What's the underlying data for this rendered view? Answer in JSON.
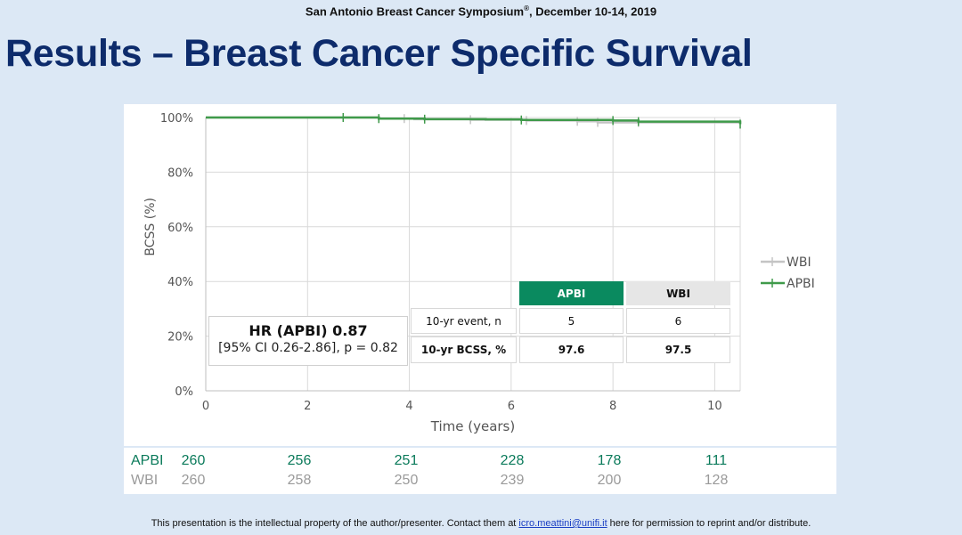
{
  "header": {
    "conference": "San Antonio Breast Cancer Symposium",
    "reg": "®",
    "dates": ", December 10-14, 2019"
  },
  "slide_title": "Results – Breast Cancer Specific Survival",
  "hr_box": {
    "title": "HR (APBI) 0.87",
    "ci": "[95% CI 0.26-2.86], p = 0.82"
  },
  "results_table": {
    "col_apbi": "APBI",
    "col_wbi": "WBI",
    "rows": [
      {
        "label": "10-yr event, n",
        "apbi": "5",
        "wbi": "6"
      },
      {
        "label": "10-yr BCSS, %",
        "apbi": "97.6",
        "wbi": "97.5"
      }
    ]
  },
  "risk_table": {
    "apbi_label": "APBI",
    "wbi_label": "WBI",
    "apbi": [
      "260",
      "256",
      "251",
      "228",
      "178",
      "111"
    ],
    "wbi": [
      "260",
      "258",
      "250",
      "239",
      "200",
      "128"
    ]
  },
  "footer": {
    "text_before": "This presentation is the intellectual property of the author/presenter. Contact them at ",
    "email": "icro.meattini@unifi.it",
    "text_after": " here for permission to reprint and/or distribute."
  },
  "colors": {
    "apbi": "#3f9a4a",
    "wbi": "#c4c4c4",
    "title": "#0d2b6b",
    "background": "#dce8f5"
  },
  "chart_data": {
    "type": "line",
    "title": "",
    "xlabel": "Time (years)",
    "ylabel": "BCSS (%)",
    "xlim": [
      0,
      10.5
    ],
    "ylim": [
      0,
      100
    ],
    "xticks": [
      0,
      2,
      4,
      6,
      8,
      10
    ],
    "yticks": [
      0,
      20,
      40,
      60,
      80,
      100
    ],
    "ytick_labels": [
      "0%",
      "20%",
      "40%",
      "60%",
      "80%",
      "100%"
    ],
    "grid": true,
    "legend_position": "right",
    "series": [
      {
        "name": "WBI",
        "color": "#c4c4c4",
        "points": [
          [
            0,
            100
          ],
          [
            2.7,
            100
          ],
          [
            3.4,
            99.6
          ],
          [
            3.9,
            99.6
          ],
          [
            4.1,
            99.4
          ],
          [
            5.2,
            99.2
          ],
          [
            6.3,
            98.9
          ],
          [
            7.3,
            98.6
          ],
          [
            7.7,
            98.2
          ],
          [
            8.5,
            98.2
          ],
          [
            10.5,
            97.5
          ]
        ],
        "censor": [
          3.4,
          3.9,
          5.2,
          6.3,
          7.3,
          7.7,
          8.5,
          10.5
        ]
      },
      {
        "name": "APBI",
        "color": "#3f9a4a",
        "points": [
          [
            0,
            100
          ],
          [
            2.7,
            100
          ],
          [
            3.4,
            99.6
          ],
          [
            4.3,
            99.4
          ],
          [
            5.5,
            99.3
          ],
          [
            6.2,
            99.1
          ],
          [
            8.0,
            98.9
          ],
          [
            8.5,
            98.5
          ],
          [
            10.5,
            97.6
          ]
        ],
        "censor": [
          2.7,
          3.4,
          4.3,
          6.2,
          8.0,
          8.5,
          10.5
        ]
      }
    ]
  }
}
